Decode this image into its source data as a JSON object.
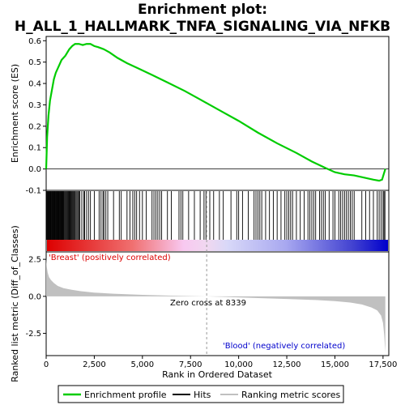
{
  "chart_data": [
    {
      "type": "line",
      "title_line1": "Enrichment plot:",
      "title_line2": "H_ALL_1_HALLMARK_TNFA_SIGNALING_VIA_NFKB",
      "ylabel": "Enrichment score (ES)",
      "xlim": [
        0,
        17800
      ],
      "ylim": [
        -0.1,
        0.62
      ],
      "yticks": [
        "-0.1",
        "0.0",
        "0.1",
        "0.2",
        "0.3",
        "0.4",
        "0.5",
        "0.6"
      ],
      "ytick_values": [
        -0.1,
        0.0,
        0.1,
        0.2,
        0.3,
        0.4,
        0.5,
        0.6
      ],
      "series": [
        {
          "name": "Enrichment profile",
          "color": "#00cc00",
          "x": [
            0,
            50,
            120,
            200,
            300,
            400,
            500,
            650,
            800,
            1000,
            1200,
            1350,
            1500,
            1700,
            1900,
            2100,
            2300,
            2500,
            2700,
            3000,
            3300,
            3700,
            4200,
            4800,
            5500,
            6300,
            7200,
            8000,
            9000,
            10000,
            11000,
            12000,
            13000,
            13800,
            14500,
            15000,
            15500,
            16000,
            16500,
            17000,
            17300,
            17450,
            17550,
            17620
          ],
          "y": [
            0.0,
            0.15,
            0.25,
            0.32,
            0.37,
            0.42,
            0.45,
            0.48,
            0.51,
            0.53,
            0.56,
            0.575,
            0.585,
            0.585,
            0.58,
            0.585,
            0.585,
            0.575,
            0.57,
            0.56,
            0.545,
            0.52,
            0.495,
            0.47,
            0.44,
            0.405,
            0.365,
            0.325,
            0.275,
            0.225,
            0.17,
            0.12,
            0.075,
            0.035,
            0.005,
            -0.015,
            -0.025,
            -0.03,
            -0.04,
            -0.05,
            -0.055,
            -0.05,
            -0.02,
            0.0
          ]
        }
      ]
    },
    {
      "type": "hits",
      "hits_color": "#000000",
      "hit_positions": [
        10,
        40,
        70,
        100,
        130,
        160,
        190,
        220,
        250,
        280,
        310,
        340,
        370,
        400,
        430,
        460,
        490,
        520,
        550,
        580,
        610,
        640,
        670,
        700,
        730,
        760,
        790,
        820,
        850,
        880,
        910,
        940,
        980,
        1020,
        1060,
        1100,
        1140,
        1180,
        1220,
        1260,
        1300,
        1340,
        1380,
        1420,
        1460,
        1500,
        1550,
        1600,
        1650,
        1700,
        1750,
        1850,
        1950,
        2000,
        2100,
        2200,
        2300,
        2500,
        2750,
        2850,
        2950,
        3000,
        3100,
        3200,
        3500,
        3800,
        3900,
        4200,
        4350,
        4500,
        4600,
        4700,
        4850,
        5000,
        5200,
        5500,
        5600,
        5700,
        5800,
        5900,
        6000,
        6300,
        6500,
        6900,
        7000,
        7100,
        7400,
        7700,
        8000,
        8200,
        8300,
        8500,
        8700,
        9000,
        9200,
        9600,
        9900,
        10000,
        10200,
        10500,
        10800,
        10900,
        11000,
        11100,
        11200,
        11400,
        11600,
        11800,
        12000,
        12200,
        12400,
        12500,
        12600,
        12700,
        12800,
        13000,
        13200,
        13400,
        13600,
        13700,
        13800,
        13900,
        14000,
        14200,
        14300,
        14400,
        14500,
        14700,
        14900,
        15000,
        15200,
        15300,
        15400,
        15500,
        15600,
        15700,
        15800,
        15900,
        16000,
        16400,
        16600,
        16800,
        17000,
        17200,
        17300,
        17400,
        17500,
        17550,
        17600
      ]
    },
    {
      "type": "area",
      "xlabel": "Rank in Ordered Dataset",
      "ylabel": "Ranked list metric (Diff_of_Classes)",
      "xlim": [
        0,
        17800
      ],
      "ylim": [
        -4.0,
        3.0
      ],
      "xticks": [
        "0",
        "2,500",
        "5,000",
        "7,500",
        "10,000",
        "12,500",
        "15,000",
        "17,500"
      ],
      "xtick_values": [
        0,
        2500,
        5000,
        7500,
        10000,
        12500,
        15000,
        17500
      ],
      "yticks": [
        "2.5",
        "0.0",
        "-2.5"
      ],
      "ytick_values": [
        2.5,
        0.0,
        -2.5
      ],
      "fill_color": "#c0c0c0",
      "x": [
        0,
        30,
        80,
        150,
        250,
        400,
        600,
        900,
        1300,
        1800,
        2500,
        3500,
        5000,
        6500,
        8339,
        9500,
        11000,
        12500,
        14000,
        15000,
        15800,
        16400,
        16900,
        17200,
        17400,
        17500,
        17560,
        17600,
        17620
      ],
      "values": [
        2.6,
        2.0,
        1.6,
        1.3,
        1.1,
        0.9,
        0.7,
        0.55,
        0.45,
        0.35,
        0.25,
        0.18,
        0.1,
        0.05,
        0.0,
        -0.05,
        -0.12,
        -0.18,
        -0.25,
        -0.32,
        -0.42,
        -0.55,
        -0.75,
        -0.95,
        -1.3,
        -1.8,
        -2.6,
        -3.4,
        -3.8
      ],
      "zero_cross_label": "Zero cross at 8339",
      "zero_cross": 8339,
      "pos_label": "'Breast' (positively correlated)",
      "neg_label": "'Blood' (negatively correlated)",
      "pos_color": "#dd0000",
      "neg_color": "#0000cc"
    }
  ],
  "legend": {
    "placement": "bottom",
    "items": [
      {
        "label": "Enrichment profile",
        "color": "#00cc00",
        "style": "line"
      },
      {
        "label": "Hits",
        "color": "#000000",
        "style": "line"
      },
      {
        "label": "Ranking metric scores",
        "color": "#c0c0c0",
        "style": "line"
      }
    ]
  }
}
